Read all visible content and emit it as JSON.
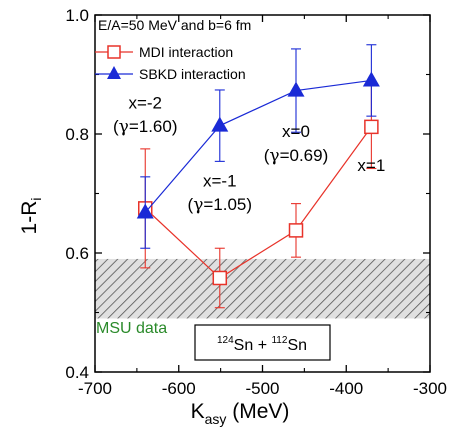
{
  "chart_data": {
    "type": "scatter",
    "xlabel": {
      "main": "K",
      "sub": "asy",
      "rest": " (MeV)"
    },
    "ylabel": {
      "main": "1-R",
      "sub": "i"
    },
    "xlim": [
      -700,
      -300
    ],
    "ylim": [
      0.4,
      1.0
    ],
    "x_ticks": [
      "-700",
      "-600",
      "-500",
      "-400",
      "-300"
    ],
    "x_tick_values": [
      -700,
      -600,
      -500,
      -400,
      -300
    ],
    "y_ticks": [
      "0.4",
      "0.6",
      "0.8",
      "1.0"
    ],
    "y_tick_values": [
      0.4,
      0.6,
      0.8,
      1.0
    ],
    "grid": false,
    "legend": {
      "title": "E/A=50 MeV and b=6 fm",
      "placement": "top-left"
    },
    "series": [
      {
        "name": "MDI interaction",
        "color": "#e8332a",
        "marker": "open-square",
        "x": [
          -640,
          -551,
          -460,
          -370
        ],
        "y": [
          0.675,
          0.558,
          0.638,
          0.812
        ],
        "err": [
          0.1,
          0.05,
          0.045,
          0.07
        ]
      },
      {
        "name": "SBKD interaction",
        "color": "#1a2ad6",
        "marker": "filled-triangle",
        "x": [
          -640,
          -551,
          -460,
          -370
        ],
        "y": [
          0.668,
          0.814,
          0.873,
          0.89
        ],
        "err": [
          0.06,
          0.06,
          0.07,
          0.06
        ]
      }
    ],
    "band": {
      "label": "MSU data",
      "y_range": [
        0.49,
        0.59
      ],
      "label_color": "#2a8a2a"
    },
    "annotations": [
      {
        "text": "x=-2",
        "x": -640,
        "y": 0.843
      },
      {
        "text_prefix": "(",
        "greek": "γ",
        "text": "=1.60)",
        "x": -640,
        "y": 0.803
      },
      {
        "text": "x=-1",
        "x": -551,
        "y": 0.712
      },
      {
        "text_prefix": "(",
        "greek": "γ",
        "text": "=1.05)",
        "x": -551,
        "y": 0.672
      },
      {
        "text": "x=0",
        "x": -460,
        "y": 0.795
      },
      {
        "text_prefix": "(",
        "greek": "γ",
        "text": "=0.69)",
        "x": -460,
        "y": 0.755
      },
      {
        "text": "x=1",
        "x": -370,
        "y": 0.738
      }
    ],
    "label_box": {
      "a_mass": "124",
      "a_elem": "Sn",
      "joiner": " + ",
      "b_mass": "112",
      "b_elem": "Sn"
    }
  }
}
